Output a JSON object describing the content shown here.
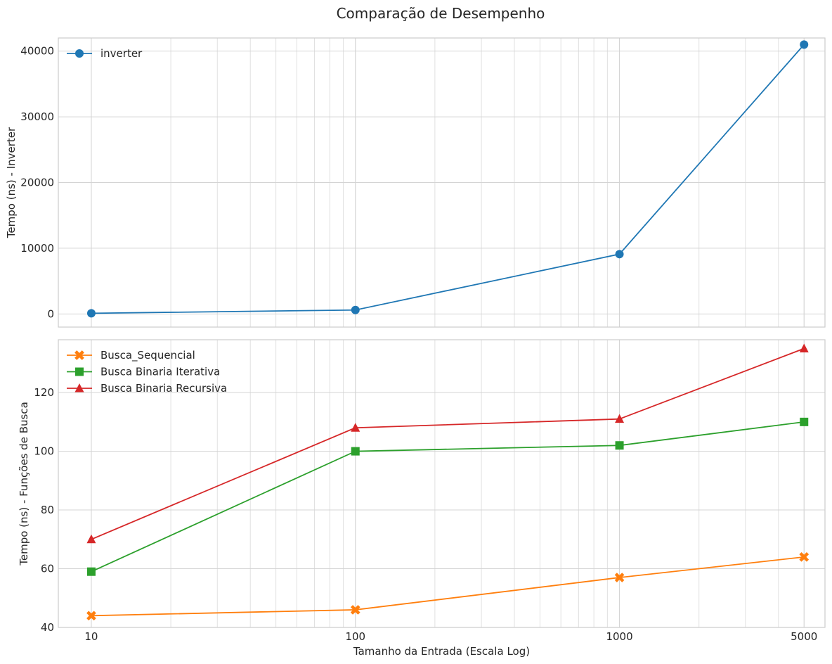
{
  "figure": {
    "title": "Comparação de Desempenho"
  },
  "chart_data": [
    {
      "type": "line",
      "xscale": "log",
      "x": [
        10,
        100,
        1000,
        5000
      ],
      "xticks": [
        "10",
        "100",
        "1000",
        "5000"
      ],
      "xlim": [
        7.5,
        6000
      ],
      "xlabel": "",
      "ylabel": "Tempo (ns) - Inverter",
      "ylim": [
        -2000,
        42000
      ],
      "yticks": [
        0,
        10000,
        20000,
        30000,
        40000
      ],
      "grid": true,
      "legend_position": "top-left",
      "series": [
        {
          "name": "inverter",
          "values": [
            100,
            600,
            9100,
            41000
          ],
          "color": "#1f77b4",
          "marker": "circle"
        }
      ]
    },
    {
      "type": "line",
      "xscale": "log",
      "x": [
        10,
        100,
        1000,
        5000
      ],
      "xticks": [
        "10",
        "100",
        "1000",
        "5000"
      ],
      "xlim": [
        7.5,
        6000
      ],
      "xlabel": "Tamanho da Entrada (Escala Log)",
      "ylabel": "Tempo (ns) - Funções de Busca",
      "ylim": [
        40,
        138
      ],
      "yticks": [
        40,
        60,
        80,
        100,
        120
      ],
      "grid": true,
      "legend_position": "top-left",
      "series": [
        {
          "name": "Busca_Sequencial",
          "values": [
            44,
            46,
            57,
            64
          ],
          "color": "#ff7f0e",
          "marker": "x"
        },
        {
          "name": "Busca Binaria Iterativa",
          "values": [
            59,
            100,
            102,
            110
          ],
          "color": "#2ca02c",
          "marker": "square"
        },
        {
          "name": "Busca Binaria Recursiva",
          "values": [
            70,
            108,
            111,
            135
          ],
          "color": "#d62728",
          "marker": "triangle"
        }
      ]
    }
  ]
}
